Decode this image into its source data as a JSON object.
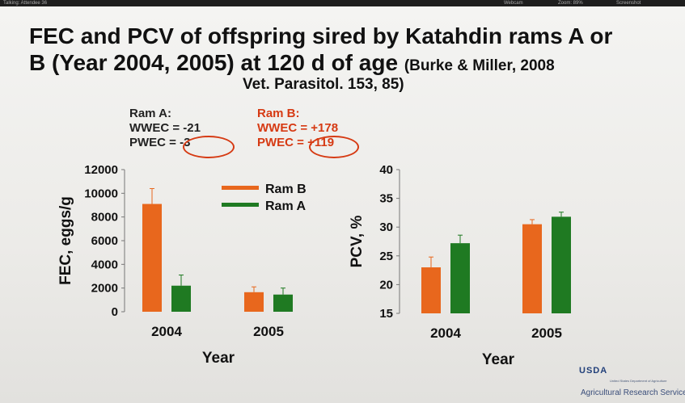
{
  "topbar": {
    "attendees": "Talking: Attendee 36",
    "webcam": "Webcam",
    "zoom": "Zoom: 89%",
    "screenshot": "Screenshot"
  },
  "slide": {
    "title_line1": "FEC and PCV of offspring sired by Katahdin rams A or",
    "title_line2": "B (Year 2004, 2005) at 120 d of age",
    "title_cite": "(Burke & Miller, 2008",
    "subtitle": "Vet. Parasitol. 153, 85)",
    "ram_a": {
      "heading": "Ram A:",
      "wwec": "WWEC = -21",
      "pwec": "PWEC = -3"
    },
    "ram_b": {
      "heading": "Ram B:",
      "wwec": "WWEC = +178",
      "pwec": "PWEC = +119"
    },
    "logo": {
      "mark": "USDA",
      "fine_print": "United States Department of Agriculture",
      "agency": "Agricultural Research Service"
    }
  },
  "colors": {
    "ram_b": "#e8671d",
    "ram_a": "#1f7a22",
    "highlight": "#d63a13"
  },
  "chart_data": [
    {
      "type": "bar",
      "categories": [
        "2004",
        "2005"
      ],
      "series": [
        {
          "name": "Ram B",
          "values": [
            9100,
            1650
          ],
          "error": [
            1300,
            450
          ]
        },
        {
          "name": "Ram A",
          "values": [
            2200,
            1450
          ],
          "error": [
            900,
            550
          ]
        }
      ],
      "ylabel": "FEC, eggs/g",
      "xlabel": "Year",
      "ylim": [
        0,
        12000
      ],
      "yticks": [
        "0",
        "2000",
        "4000",
        "6000",
        "8000",
        "10000",
        "12000"
      ],
      "legend": "top-right"
    },
    {
      "type": "bar",
      "categories": [
        "2004",
        "2005"
      ],
      "series": [
        {
          "name": "Ram B",
          "values": [
            23.0,
            30.5
          ],
          "error": [
            1.8,
            0.8
          ]
        },
        {
          "name": "Ram A",
          "values": [
            27.2,
            31.8
          ],
          "error": [
            1.4,
            0.8
          ]
        }
      ],
      "ylabel": "PCV, %",
      "xlabel": "Year",
      "ylim": [
        15,
        40
      ],
      "yticks": [
        "15",
        "20",
        "25",
        "30",
        "35",
        "40"
      ]
    }
  ]
}
